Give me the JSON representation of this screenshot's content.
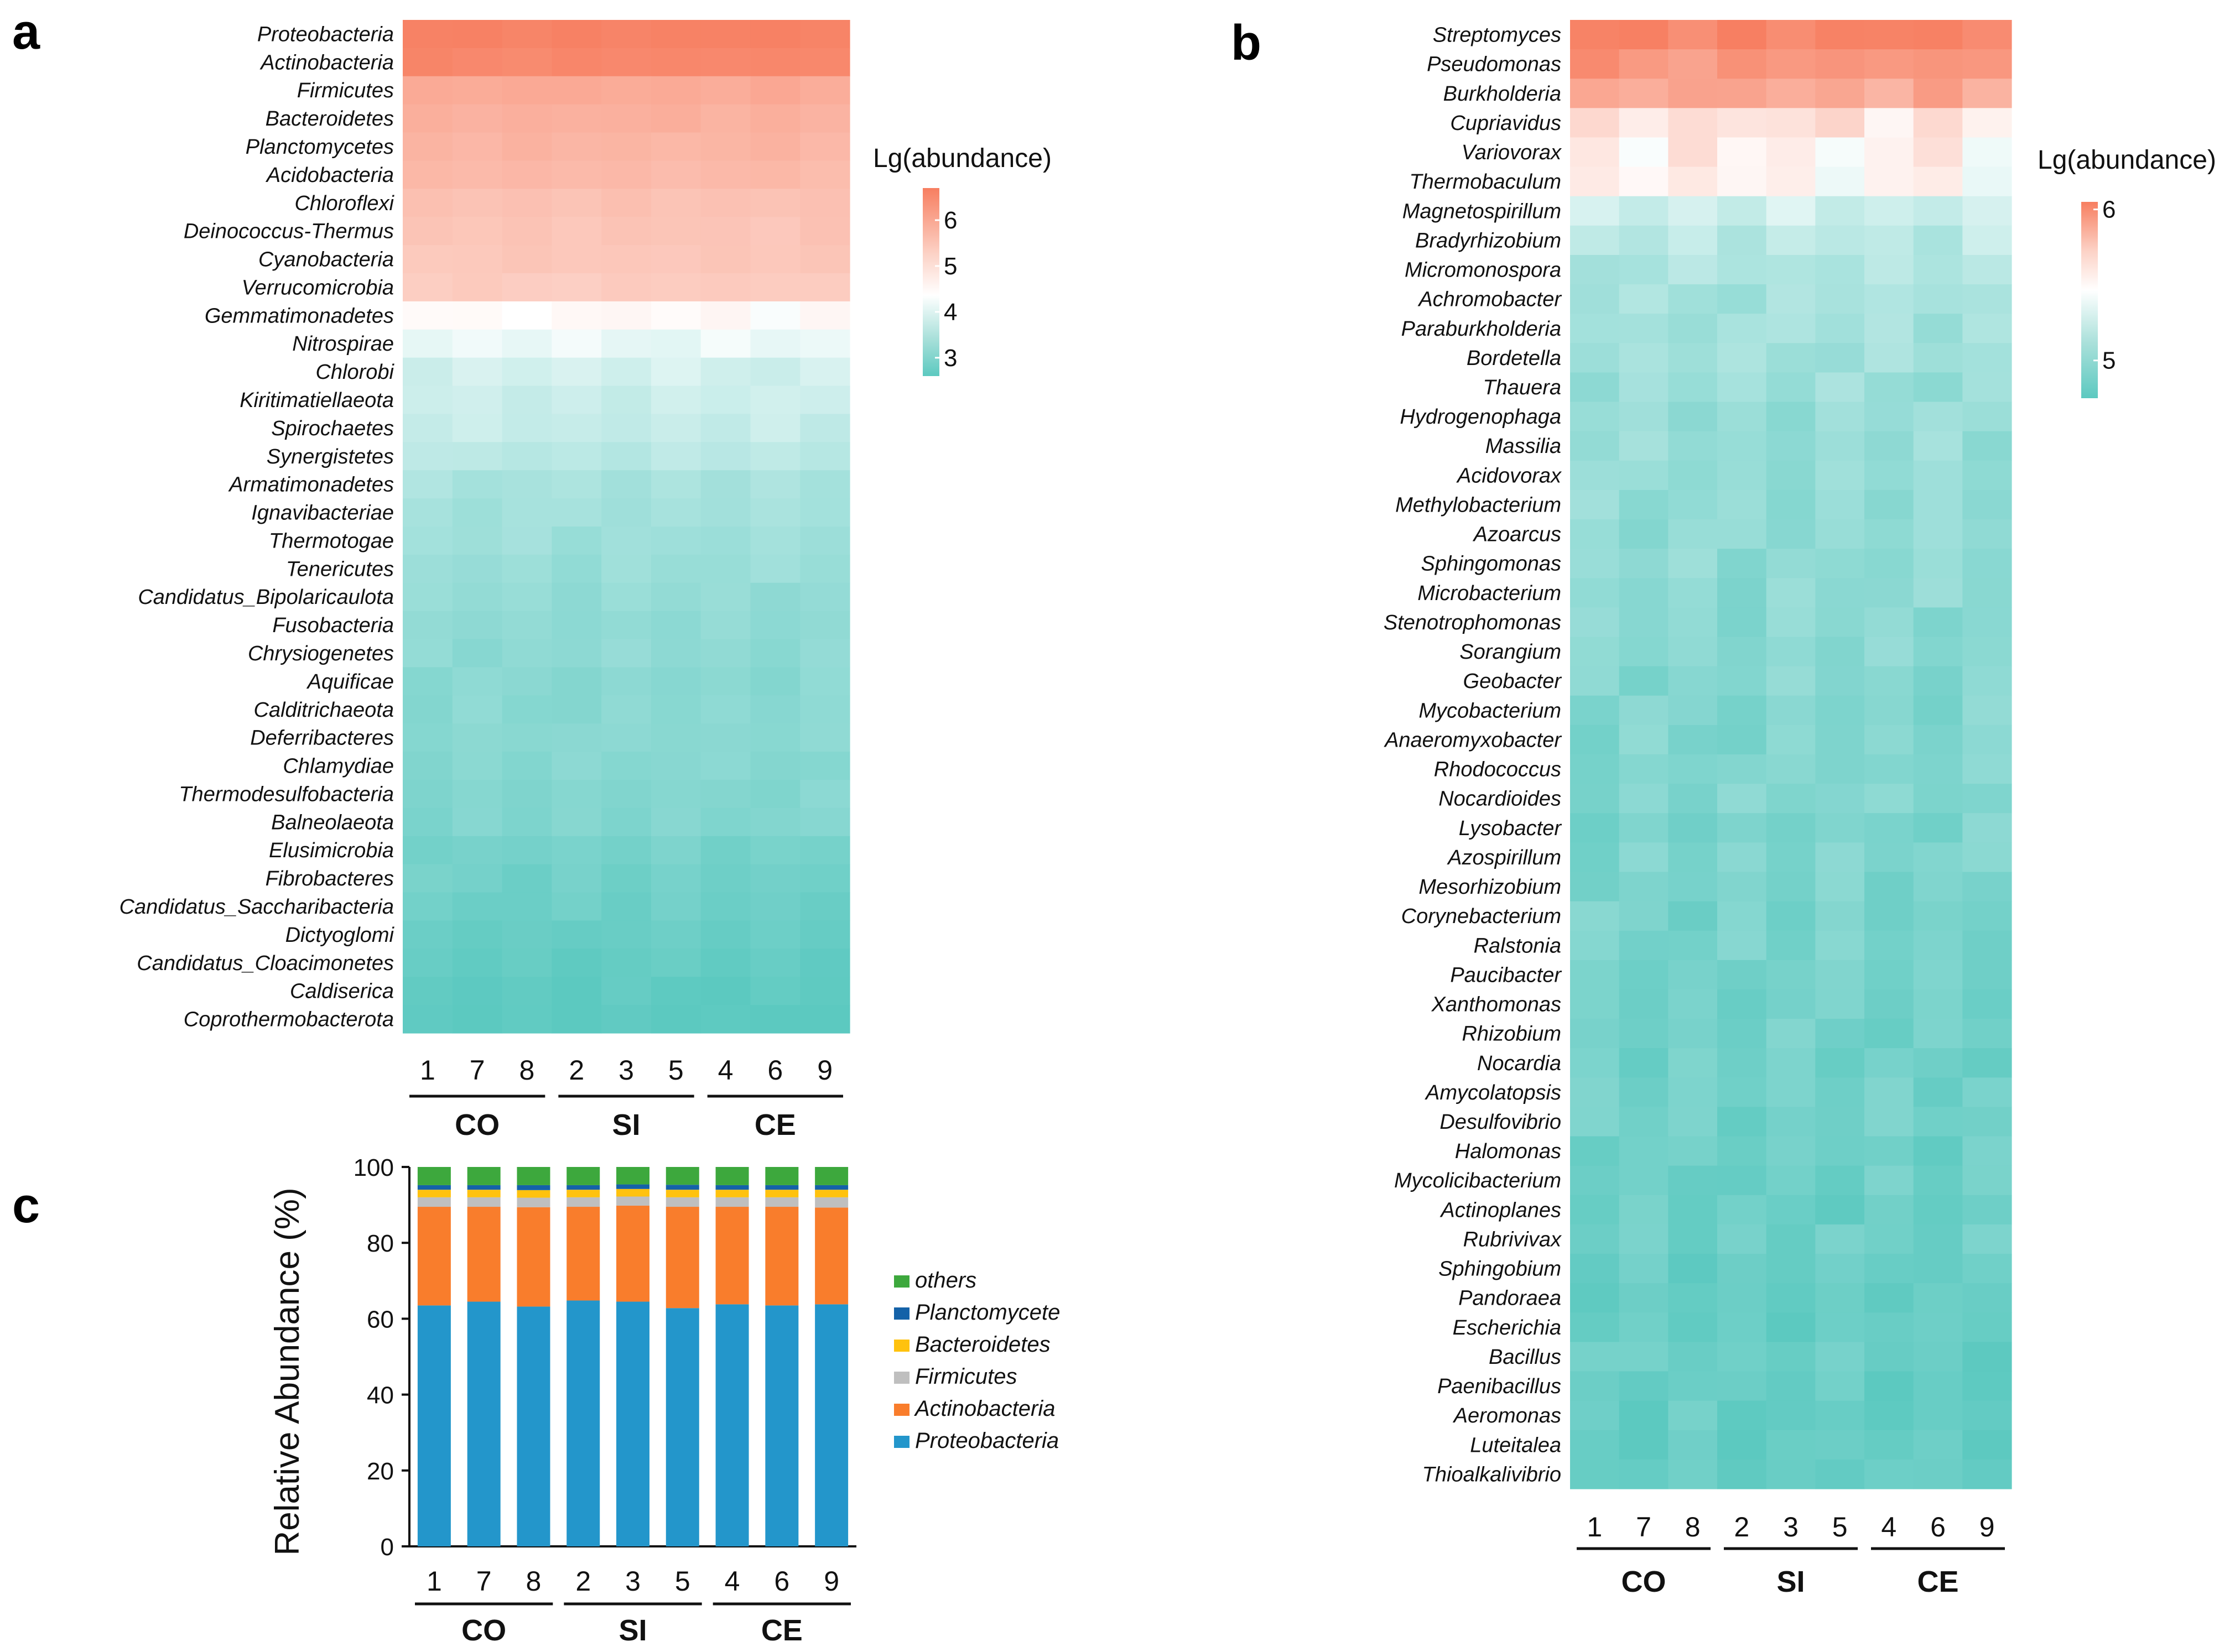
{
  "panels": [
    {
      "id": "a",
      "label": "a",
      "chart_data": {
        "type": "heatmap",
        "title": "",
        "color_scale_title": "Lg(abundance)",
        "color_scale": {
          "low": "#5CC9C0",
          "mid": "#FFFFFF",
          "high": "#F77E60",
          "ticks": [
            3,
            4,
            5,
            6
          ],
          "range": [
            2.6,
            6.7
          ],
          "mid_value": 4.0
        },
        "columns": [
          "1",
          "7",
          "8",
          "2",
          "3",
          "5",
          "4",
          "6",
          "9"
        ],
        "groups": [
          {
            "name": "CO",
            "columns": [
              "1",
              "7",
              "8"
            ]
          },
          {
            "name": "SI",
            "columns": [
              "2",
              "3",
              "5"
            ]
          },
          {
            "name": "CE",
            "columns": [
              "4",
              "6",
              "9"
            ]
          }
        ],
        "rows": [
          "Proteobacteria",
          "Actinobacteria",
          "Firmicutes",
          "Bacteroidetes",
          "Planctomycetes",
          "Acidobacteria",
          "Chloroflexi",
          "Deinococcus-Thermus",
          "Cyanobacteria",
          "Verrucomicrobia",
          "Gemmatimonadetes",
          "Nitrospirae",
          "Chlorobi",
          "Kiritimatiellaeota",
          "Spirochaetes",
          "Synergistetes",
          "Armatimonadetes",
          "Ignavibacteriae",
          "Thermotogae",
          "Tenericutes",
          "Candidatus_Bipolaricaulota",
          "Fusobacteria",
          "Chrysiogenetes",
          "Aquificae",
          "Calditrichaeota",
          "Deferribacteres",
          "Chlamydiae",
          "Thermodesulfobacteria",
          "Balneolaeota",
          "Elusimicrobia",
          "Fibrobacteres",
          "Candidatus_Saccharibacteria",
          "Dictyoglomi",
          "Candidatus_Cloacimonetes",
          "Caldiserica",
          "Coprothermobacterota"
        ],
        "row_means": [
          6.6,
          6.45,
          5.6,
          5.45,
          5.35,
          5.25,
          5.05,
          5.0,
          4.95,
          4.85,
          4.05,
          3.9,
          3.75,
          3.7,
          3.65,
          3.55,
          3.4,
          3.35,
          3.3,
          3.25,
          3.2,
          3.15,
          3.15,
          3.1,
          3.1,
          3.1,
          3.05,
          3.05,
          3.0,
          2.9,
          2.85,
          2.8,
          2.75,
          2.7,
          2.65,
          2.6
        ]
      }
    },
    {
      "id": "b",
      "label": "b",
      "chart_data": {
        "type": "heatmap",
        "title": "",
        "color_scale_title": "Lg(abundance)",
        "color_scale": {
          "low": "#5CC9C0",
          "mid": "#FFFFFF",
          "high": "#F77E60",
          "ticks": [
            5,
            6
          ],
          "range": [
            4.75,
            6.05
          ],
          "mid_value": 5.4
        },
        "columns": [
          "1",
          "7",
          "8",
          "2",
          "3",
          "5",
          "4",
          "6",
          "9"
        ],
        "groups": [
          {
            "name": "CO",
            "columns": [
              "1",
              "7",
              "8"
            ]
          },
          {
            "name": "SI",
            "columns": [
              "2",
              "3",
              "5"
            ]
          },
          {
            "name": "CE",
            "columns": [
              "4",
              "6",
              "9"
            ]
          }
        ],
        "rows": [
          "Streptomyces",
          "Pseudomonas",
          "Burkholderia",
          "Cupriavidus",
          "Variovorax",
          "Thermobaculum",
          "Magnetospirillum",
          "Bradyrhizobium",
          "Micromonospora",
          "Achromobacter",
          "Paraburkholderia",
          "Bordetella",
          "Thauera",
          "Hydrogenophaga",
          "Massilia",
          "Acidovorax",
          "Methylobacterium",
          "Azoarcus",
          "Sphingomonas",
          "Microbacterium",
          "Stenotrophomonas",
          "Sorangium",
          "Geobacter",
          "Mycobacterium",
          "Anaeromyxobacter",
          "Rhodococcus",
          "Nocardioides",
          "Lysobacter",
          "Azospirillum",
          "Mesorhizobium",
          "Corynebacterium",
          "Ralstonia",
          "Paucibacter",
          "Xanthomonas",
          "Rhizobium",
          "Nocardia",
          "Amycolatopsis",
          "Desulfovibrio",
          "Halomonas",
          "Mycolicibacterium",
          "Actinoplanes",
          "Rubrivivax",
          "Sphingobium",
          "Pandoraea",
          "Escherichia",
          "Bacillus",
          "Paenibacillus",
          "Aeromonas",
          "Luteitalea",
          "Thioalkalivibrio"
        ],
        "row_means": [
          6.02,
          5.9,
          5.8,
          5.5,
          5.45,
          5.43,
          5.25,
          5.2,
          5.15,
          5.12,
          5.1,
          5.08,
          5.06,
          5.05,
          5.04,
          5.03,
          5.02,
          5.01,
          5.0,
          4.99,
          4.98,
          4.97,
          4.96,
          4.95,
          4.94,
          4.94,
          4.93,
          4.92,
          4.92,
          4.91,
          4.9,
          4.9,
          4.89,
          4.88,
          4.88,
          4.87,
          4.86,
          4.86,
          4.85,
          4.85,
          4.84,
          4.84,
          4.83,
          4.83,
          4.82,
          4.82,
          4.81,
          4.81,
          4.8,
          4.8
        ]
      }
    },
    {
      "id": "c",
      "label": "c",
      "chart_data": {
        "type": "bar",
        "stacked": true,
        "title": "",
        "xlabel": "",
        "ylabel": "Relative Abundance (%)",
        "ylim": [
          0,
          100
        ],
        "yticks": [
          0,
          20,
          40,
          60,
          80,
          100
        ],
        "categories": [
          "1",
          "7",
          "8",
          "2",
          "3",
          "5",
          "4",
          "6",
          "9"
        ],
        "groups": [
          {
            "name": "CO",
            "categories": [
              "1",
              "7",
              "8"
            ]
          },
          {
            "name": "SI",
            "categories": [
              "2",
              "3",
              "5"
            ]
          },
          {
            "name": "CE",
            "categories": [
              "4",
              "6",
              "9"
            ]
          }
        ],
        "series": [
          {
            "name": "Proteobacteria",
            "color": "#2396CB",
            "values": [
              63.5,
              64.5,
              63.2,
              64.8,
              64.5,
              62.8,
              63.8,
              63.5,
              63.8
            ]
          },
          {
            "name": "Actinobacteria",
            "color": "#F97D2C",
            "values": [
              26.0,
              25.0,
              26.2,
              24.7,
              25.3,
              26.7,
              25.7,
              26.0,
              25.5
            ]
          },
          {
            "name": "Firmicutes",
            "color": "#BFBFBF",
            "values": [
              2.5,
              2.5,
              2.5,
              2.5,
              2.4,
              2.5,
              2.5,
              2.5,
              2.7
            ]
          },
          {
            "name": "Bacteroidetes",
            "color": "#FFC20E",
            "values": [
              2.0,
              2.0,
              2.0,
              2.0,
              2.0,
              2.0,
              2.0,
              2.0,
              2.0
            ]
          },
          {
            "name": "Planctomycete",
            "color": "#1462A8",
            "values": [
              1.2,
              1.2,
              1.3,
              1.2,
              1.2,
              1.3,
              1.2,
              1.2,
              1.2
            ]
          },
          {
            "name": "others",
            "color": "#3DA83D",
            "values": [
              4.8,
              4.8,
              4.8,
              4.8,
              4.6,
              4.7,
              4.8,
              4.8,
              4.8
            ]
          }
        ],
        "legend_order": [
          "others",
          "Planctomycete",
          "Bacteroidetes",
          "Firmicutes",
          "Actinobacteria",
          "Proteobacteria"
        ],
        "legend": "right"
      }
    }
  ]
}
